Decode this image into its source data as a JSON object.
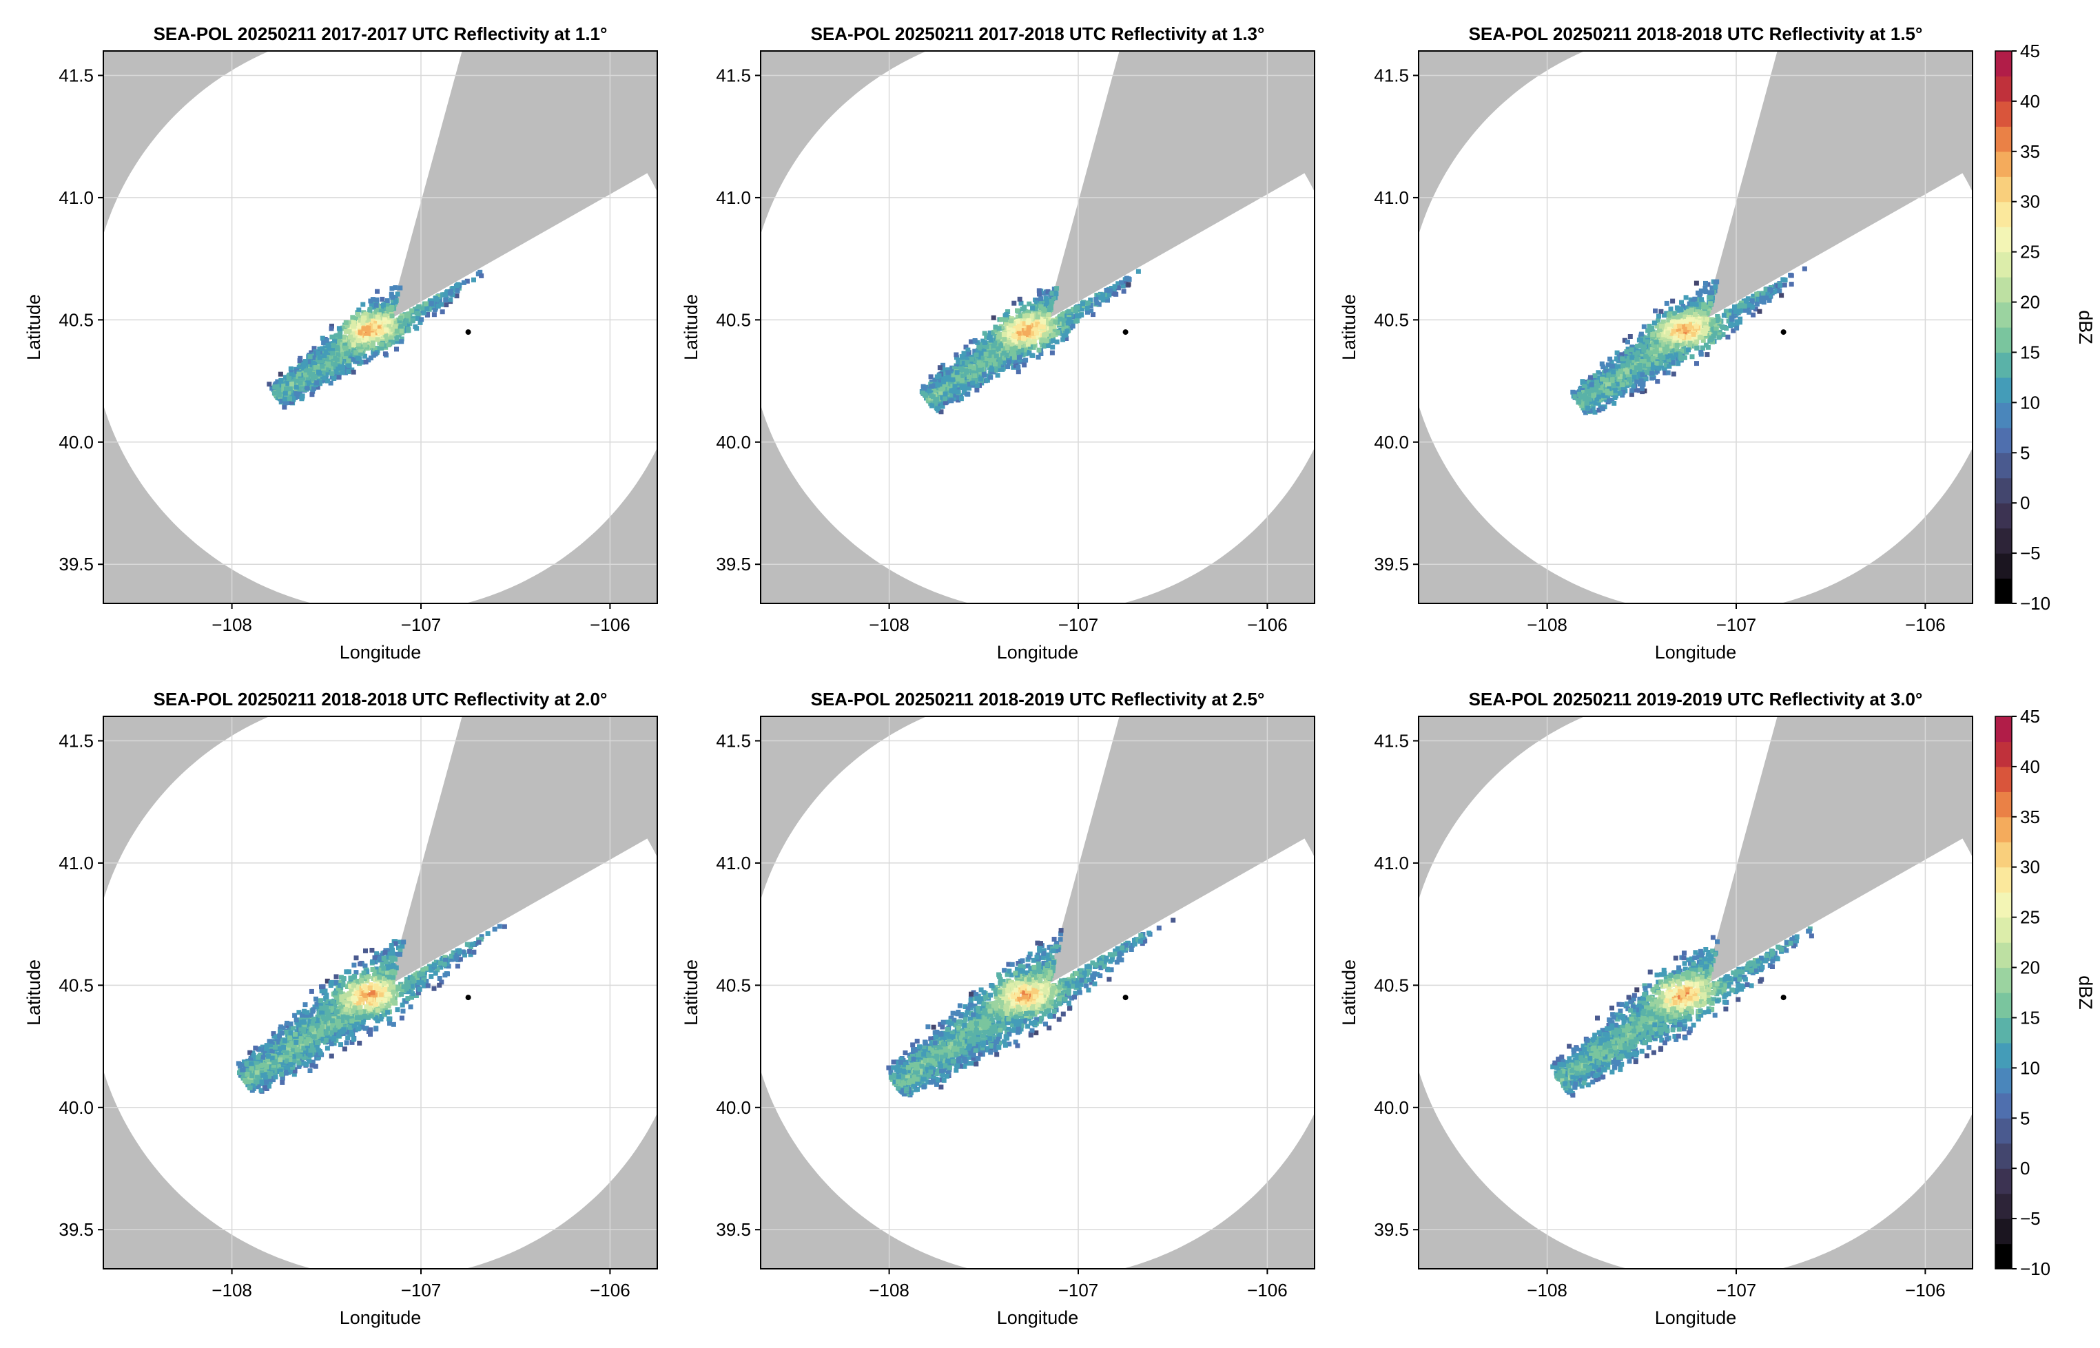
{
  "chart_data": [
    {
      "type": "heatmap",
      "title": "SEA-POL 20250211 2017-2017 UTC Reflectivity at 1.1°",
      "xlabel": "Longitude",
      "ylabel": "Latitude",
      "xlim": [
        -108.68,
        -105.75
      ],
      "ylim": [
        39.34,
        41.6
      ],
      "xticks": [
        -108,
        -107,
        -106
      ],
      "xtick_labels": [
        "−108",
        "−107",
        "−106"
      ],
      "yticks": [
        39.5,
        40.0,
        40.5,
        41.0,
        41.5
      ],
      "ytick_labels": [
        "39.5",
        "40.0",
        "40.5",
        "41.0",
        "41.5"
      ],
      "grid": true,
      "colorbar": false,
      "radar_site": {
        "lon": -107.17,
        "lat": 40.5
      },
      "point_marker": {
        "lon": -106.75,
        "lat": 40.45
      },
      "coverage_radius_deg": 1.2,
      "blocked_sector_deg": [
        15,
        60
      ],
      "echo_extent": 0.9
    },
    {
      "type": "heatmap",
      "title": "SEA-POL 20250211 2017-2018 UTC Reflectivity at 1.3°",
      "xlabel": "Longitude",
      "ylabel": "Latitude",
      "xlim": [
        -108.68,
        -105.75
      ],
      "ylim": [
        39.34,
        41.6
      ],
      "xticks": [
        -108,
        -107,
        -106
      ],
      "xtick_labels": [
        "−108",
        "−107",
        "−106"
      ],
      "yticks": [
        39.5,
        40.0,
        40.5,
        41.0,
        41.5
      ],
      "ytick_labels": [
        "39.5",
        "40.0",
        "40.5",
        "41.0",
        "41.5"
      ],
      "grid": true,
      "colorbar": false,
      "radar_site": {
        "lon": -107.17,
        "lat": 40.5
      },
      "point_marker": {
        "lon": -106.75,
        "lat": 40.45
      },
      "coverage_radius_deg": 1.2,
      "blocked_sector_deg": [
        15,
        60
      ],
      "echo_extent": 0.95
    },
    {
      "type": "heatmap",
      "title": "SEA-POL 20250211 2018-2018 UTC Reflectivity at 1.5°",
      "xlabel": "Longitude",
      "ylabel": "Latitude",
      "xlim": [
        -108.68,
        -105.75
      ],
      "ylim": [
        39.34,
        41.6
      ],
      "xticks": [
        -108,
        -107,
        -106
      ],
      "xtick_labels": [
        "−108",
        "−107",
        "−106"
      ],
      "yticks": [
        39.5,
        40.0,
        40.5,
        41.0,
        41.5
      ],
      "ytick_labels": [
        "39.5",
        "40.0",
        "40.5",
        "41.0",
        "41.5"
      ],
      "grid": true,
      "colorbar": true,
      "radar_site": {
        "lon": -107.17,
        "lat": 40.5
      },
      "point_marker": {
        "lon": -106.75,
        "lat": 40.45
      },
      "coverage_radius_deg": 1.2,
      "blocked_sector_deg": [
        15,
        60
      ],
      "echo_extent": 1.0
    },
    {
      "type": "heatmap",
      "title": "SEA-POL 20250211 2018-2018 UTC Reflectivity at 2.0°",
      "xlabel": "Longitude",
      "ylabel": "Latitude",
      "xlim": [
        -108.68,
        -105.75
      ],
      "ylim": [
        39.34,
        41.6
      ],
      "xticks": [
        -108,
        -107,
        -106
      ],
      "xtick_labels": [
        "−108",
        "−107",
        "−106"
      ],
      "yticks": [
        39.5,
        40.0,
        40.5,
        41.0,
        41.5
      ],
      "ytick_labels": [
        "39.5",
        "40.0",
        "40.5",
        "41.0",
        "41.5"
      ],
      "grid": true,
      "colorbar": false,
      "radar_site": {
        "lon": -107.17,
        "lat": 40.5
      },
      "point_marker": {
        "lon": -106.75,
        "lat": 40.45
      },
      "coverage_radius_deg": 1.2,
      "blocked_sector_deg": [
        15,
        60
      ],
      "echo_extent": 1.15
    },
    {
      "type": "heatmap",
      "title": "SEA-POL 20250211 2018-2019 UTC Reflectivity at 2.5°",
      "xlabel": "Longitude",
      "ylabel": "Latitude",
      "xlim": [
        -108.68,
        -105.75
      ],
      "ylim": [
        39.34,
        41.6
      ],
      "xticks": [
        -108,
        -107,
        -106
      ],
      "xtick_labels": [
        "−108",
        "−107",
        "−106"
      ],
      "yticks": [
        39.5,
        40.0,
        40.5,
        41.0,
        41.5
      ],
      "ytick_labels": [
        "39.5",
        "40.0",
        "40.5",
        "41.0",
        "41.5"
      ],
      "grid": true,
      "colorbar": false,
      "radar_site": {
        "lon": -107.17,
        "lat": 40.5
      },
      "point_marker": {
        "lon": -106.75,
        "lat": 40.45
      },
      "coverage_radius_deg": 1.2,
      "blocked_sector_deg": [
        15,
        60
      ],
      "echo_extent": 1.2
    },
    {
      "type": "heatmap",
      "title": "SEA-POL 20250211 2019-2019 UTC Reflectivity at 3.0°",
      "xlabel": "Longitude",
      "ylabel": "Latitude",
      "xlim": [
        -108.68,
        -105.75
      ],
      "ylim": [
        39.34,
        41.6
      ],
      "xticks": [
        -108,
        -107,
        -106
      ],
      "xtick_labels": [
        "−108",
        "−107",
        "−106"
      ],
      "yticks": [
        39.5,
        40.0,
        40.5,
        41.0,
        41.5
      ],
      "ytick_labels": [
        "39.5",
        "40.0",
        "40.5",
        "41.0",
        "41.5"
      ],
      "grid": true,
      "colorbar": true,
      "radar_site": {
        "lon": -107.17,
        "lat": 40.5
      },
      "point_marker": {
        "lon": -106.75,
        "lat": 40.45
      },
      "coverage_radius_deg": 1.2,
      "blocked_sector_deg": [
        15,
        60
      ],
      "echo_extent": 1.15
    }
  ],
  "colorbar": {
    "label": "dBZ",
    "min": -10,
    "max": 45,
    "step": 2.5,
    "ticks": [
      -10,
      -5,
      0,
      5,
      10,
      15,
      20,
      25,
      30,
      35,
      40,
      45
    ],
    "tick_labels": [
      "−10",
      "−5",
      "0",
      "5",
      "10",
      "15",
      "20",
      "25",
      "30",
      "35",
      "40",
      "45"
    ],
    "colors": [
      "#000000",
      "#1b1520",
      "#2d2438",
      "#3c3352",
      "#43466e",
      "#4a5a8f",
      "#4f6fae",
      "#4a86bb",
      "#449cb8",
      "#5ab2a8",
      "#7ac59e",
      "#9bd3a0",
      "#bde0a2",
      "#dcedaa",
      "#f3f5b5",
      "#fbe89c",
      "#f9cf7c",
      "#f4ab5c",
      "#ea8146",
      "#d9553b",
      "#c0313b",
      "#b11d48",
      "#c02f6a",
      "#d95491",
      "#e78ab8",
      "#c98ac0",
      "#a870b0",
      "#864f98",
      "#5f2b78",
      "#3b0f52"
    ]
  },
  "colors": {
    "background_na": "#bdbdbd",
    "coverage": "#ffffff",
    "grid": "#d9d9d9",
    "axis": "#000000"
  }
}
